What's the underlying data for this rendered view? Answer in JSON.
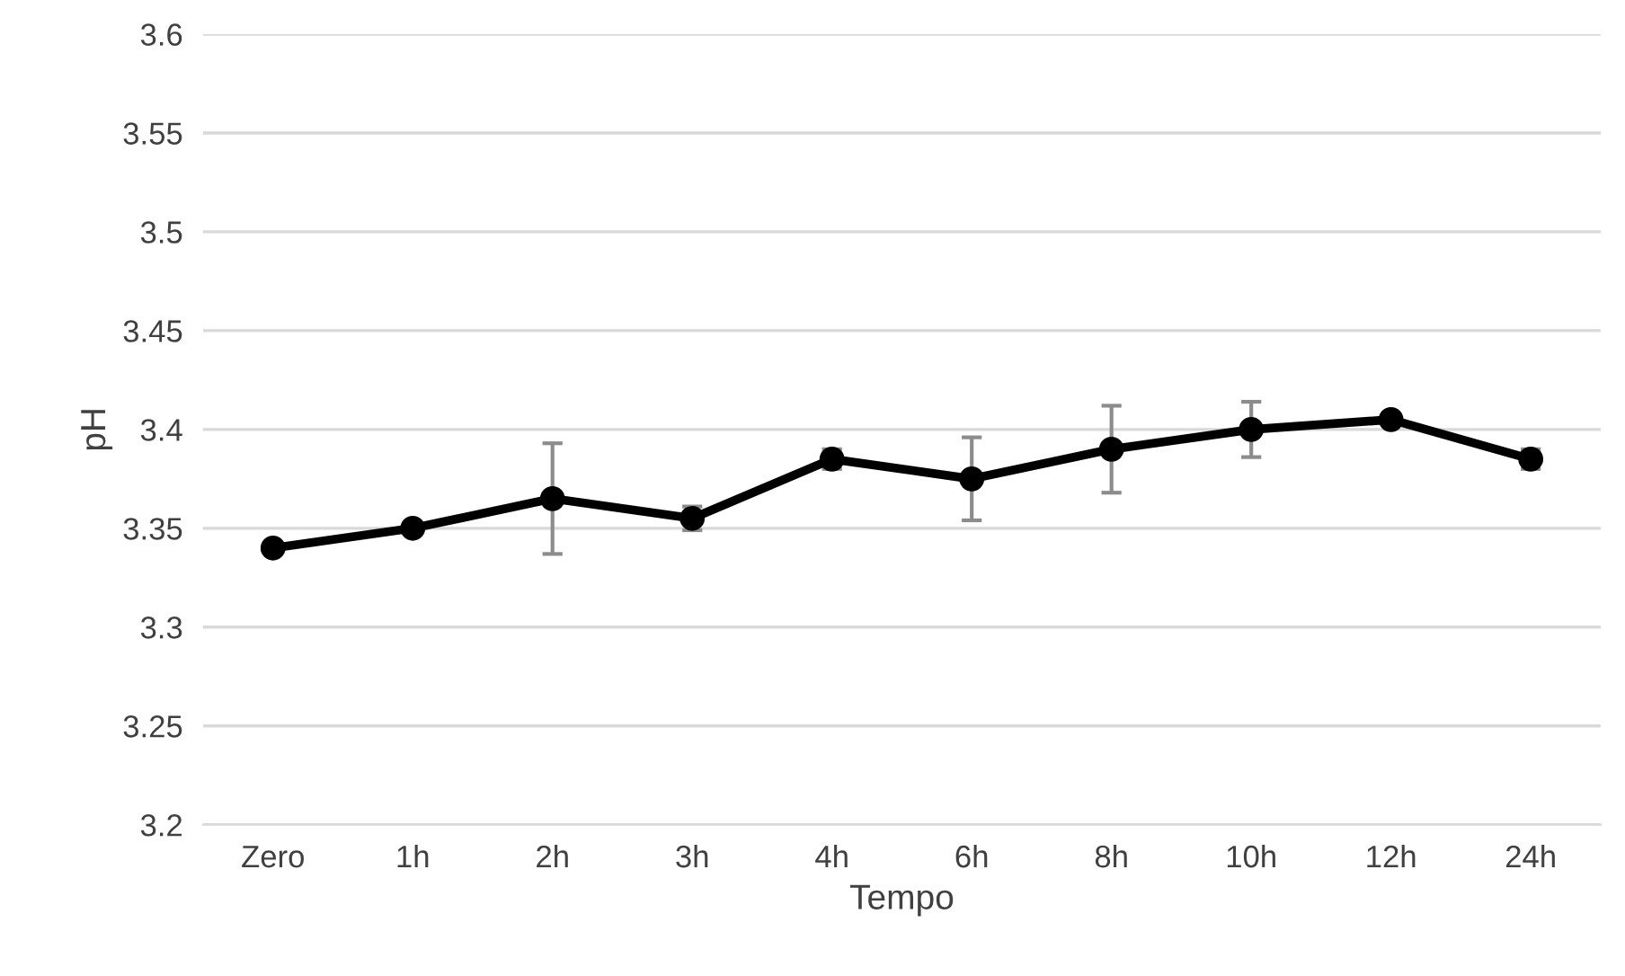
{
  "chart_data": {
    "type": "line",
    "xlabel": "Tempo",
    "ylabel": "pH",
    "categories": [
      "Zero",
      "1h",
      "2h",
      "3h",
      "4h",
      "6h",
      "8h",
      "10h",
      "12h",
      "24h"
    ],
    "series": [
      {
        "color": "#000000",
        "values": [
          3.34,
          3.35,
          3.365,
          3.355,
          3.385,
          3.375,
          3.39,
          3.4,
          3.405,
          3.385
        ],
        "errors": [
          null,
          null,
          0.028,
          0.006,
          0.005,
          0.021,
          0.022,
          0.014,
          null,
          0.005
        ]
      }
    ],
    "ylim": [
      3.2,
      3.6
    ],
    "yticks": [
      3.2,
      3.25,
      3.3,
      3.35,
      3.4,
      3.45,
      3.5,
      3.55,
      3.6
    ],
    "grid": "y",
    "legend": false,
    "marker": "circle",
    "line_style": "solid"
  }
}
